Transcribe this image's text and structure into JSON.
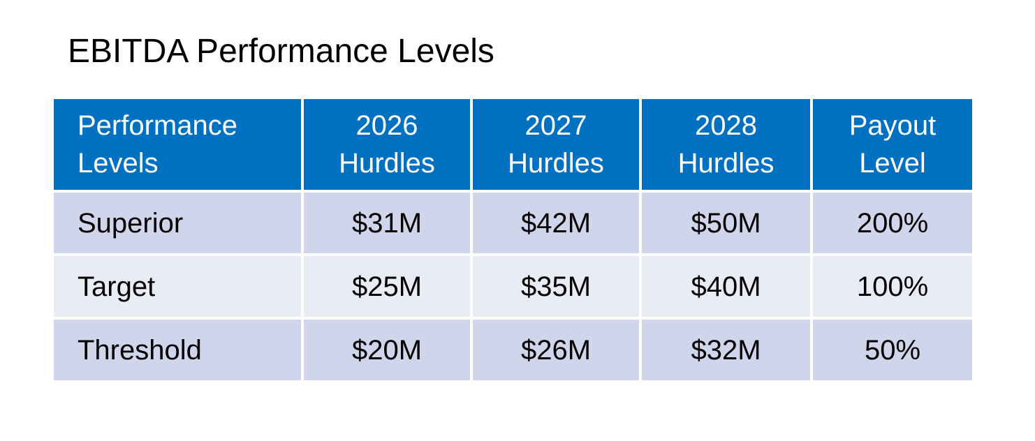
{
  "title": "EBITDA Performance Levels",
  "table": {
    "headers": [
      {
        "line1": "Performance",
        "line2": "Levels"
      },
      {
        "line1": "2026",
        "line2": "Hurdles"
      },
      {
        "line1": "2027",
        "line2": "Hurdles"
      },
      {
        "line1": "2028",
        "line2": "Hurdles"
      },
      {
        "line1": "Payout",
        "line2": "Level"
      }
    ],
    "rows": [
      {
        "level": "Superior",
        "y2026": "$31M",
        "y2027": "$42M",
        "y2028": "$50M",
        "payout": "200%"
      },
      {
        "level": "Target",
        "y2026": "$25M",
        "y2027": "$35M",
        "y2028": "$40M",
        "payout": "100%"
      },
      {
        "level": "Threshold",
        "y2026": "$20M",
        "y2027": "$26M",
        "y2028": "$32M",
        "payout": "50%"
      }
    ]
  },
  "colors": {
    "header_bg": "#0070c0",
    "header_text": "#ffffff",
    "row_odd_bg": "#cfd5ea",
    "row_even_bg": "#e9ebf5"
  }
}
